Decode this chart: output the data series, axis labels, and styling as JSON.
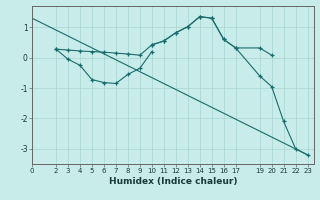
{
  "xlabel": "Humidex (Indice chaleur)",
  "xlim": [
    0,
    23.5
  ],
  "ylim": [
    -3.5,
    1.7
  ],
  "xticks": [
    0,
    2,
    3,
    4,
    5,
    6,
    7,
    8,
    9,
    10,
    11,
    12,
    13,
    14,
    15,
    16,
    17,
    19,
    20,
    21,
    22,
    23
  ],
  "yticks": [
    -3,
    -2,
    -1,
    0,
    1
  ],
  "bg_color": "#c8ecea",
  "grid_color": "#a8d4d2",
  "line_color": "#1a6b6b",
  "series_line_no_marker": {
    "x": [
      0,
      23
    ],
    "y": [
      1.3,
      -3.2
    ]
  },
  "series_flat_with_marker": {
    "x": [
      2,
      3,
      4,
      5,
      6,
      7,
      8,
      9,
      10,
      11,
      12,
      13,
      14,
      15,
      16,
      17,
      19,
      20
    ],
    "y": [
      0.28,
      0.25,
      0.22,
      0.2,
      0.18,
      0.15,
      0.12,
      0.08,
      0.42,
      0.55,
      0.82,
      1.02,
      1.35,
      1.3,
      0.6,
      0.32,
      0.32,
      0.08
    ]
  },
  "series_dip_with_marker": {
    "x": [
      2,
      3,
      4,
      5,
      6,
      7,
      8,
      9,
      10
    ],
    "y": [
      0.28,
      -0.05,
      -0.25,
      -0.72,
      -0.82,
      -0.85,
      -0.55,
      -0.35,
      0.2
    ]
  },
  "series_drop_with_marker": {
    "x": [
      10,
      11,
      12,
      13,
      14,
      15,
      16,
      17,
      19,
      20,
      21,
      22,
      23
    ],
    "y": [
      0.42,
      0.55,
      0.82,
      1.02,
      1.35,
      1.3,
      0.6,
      0.32,
      -0.6,
      -0.95,
      -2.1,
      -3.0,
      -3.2
    ]
  }
}
